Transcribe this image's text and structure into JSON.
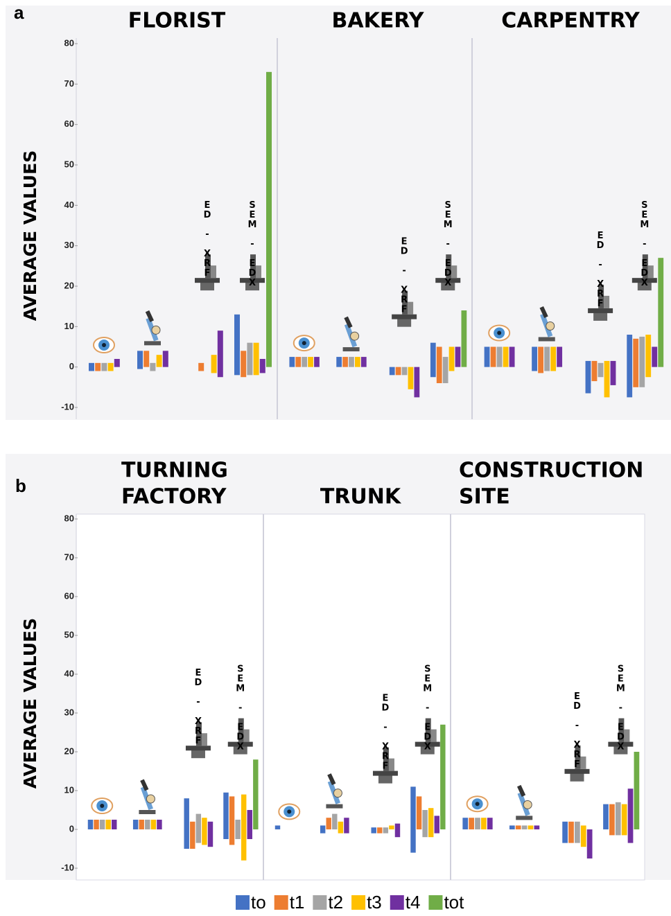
{
  "series": [
    {
      "name": "to",
      "color": "#4472c4"
    },
    {
      "name": "t1",
      "color": "#ed7d31"
    },
    {
      "name": "t2",
      "color": "#a5a5a5"
    },
    {
      "name": "t3",
      "color": "#ffc000"
    },
    {
      "name": "t4",
      "color": "#7030a0"
    },
    {
      "name": "tot",
      "color": "#70ad47"
    }
  ],
  "chart_data": [
    {
      "type": "bar",
      "panel": "a",
      "ylabel": "AVERAGE VALUES",
      "ylim": [
        -10,
        80
      ],
      "yticks": [
        -10,
        0,
        10,
        20,
        30,
        40,
        50,
        60,
        70,
        80
      ],
      "groups": [
        {
          "title": [
            "FLORIST"
          ],
          "methods": [
            {
              "label": null,
              "bars": [
                [
                  -1,
                  1
                ],
                [
                  -1,
                  1
                ],
                [
                  -1,
                  1
                ],
                [
                  -1,
                  1
                ],
                [
                  0,
                  2
                ],
                null
              ]
            },
            {
              "label": null,
              "bars": [
                [
                  -0.5,
                  4
                ],
                [
                  0,
                  4
                ],
                [
                  -1,
                  1
                ],
                [
                  0,
                  3
                ],
                [
                  0,
                  4
                ],
                null
              ]
            },
            {
              "label": "ED - XRF",
              "bars": [
                null,
                [
                  -1,
                  1
                ],
                null,
                [
                  -1.5,
                  3
                ],
                [
                  -2.5,
                  9
                ],
                null
              ]
            },
            {
              "label": "SEM - EDX",
              "bars": [
                [
                  -2,
                  13
                ],
                [
                  -2.5,
                  4
                ],
                [
                  -2,
                  6
                ],
                [
                  -2,
                  6
                ],
                [
                  -1.5,
                  2
                ],
                [
                  0,
                  73
                ]
              ]
            }
          ]
        },
        {
          "title": [
            "BAKERY"
          ],
          "methods": [
            {
              "label": null,
              "bars": [
                [
                  0,
                  2.5
                ],
                [
                  0,
                  2.5
                ],
                [
                  0,
                  2.5
                ],
                [
                  0,
                  2.5
                ],
                [
                  0,
                  2.5
                ],
                null
              ]
            },
            {
              "label": null,
              "bars": [
                [
                  0,
                  2.5
                ],
                [
                  0,
                  2.5
                ],
                [
                  0,
                  2.5
                ],
                [
                  0,
                  2.5
                ],
                [
                  0,
                  2.5
                ],
                null
              ]
            },
            {
              "label": "ED - XRF",
              "bars": [
                [
                  -2,
                  0
                ],
                [
                  -2,
                  0
                ],
                [
                  -2,
                  0
                ],
                [
                  -5.5,
                  0
                ],
                [
                  -7.5,
                  0
                ],
                null
              ]
            },
            {
              "label": "SEM - EDX",
              "bars": [
                [
                  -2.5,
                  6
                ],
                [
                  -4,
                  5
                ],
                [
                  -4,
                  2.5
                ],
                [
                  -1,
                  5
                ],
                [
                  0,
                  5
                ],
                [
                  0,
                  14
                ]
              ]
            }
          ]
        },
        {
          "title": [
            "CARPENTRY"
          ],
          "methods": [
            {
              "label": null,
              "bars": [
                [
                  0,
                  5
                ],
                [
                  0,
                  5
                ],
                [
                  0,
                  5
                ],
                [
                  0,
                  5
                ],
                [
                  0,
                  5
                ],
                null
              ]
            },
            {
              "label": null,
              "bars": [
                [
                  -1,
                  5
                ],
                [
                  -1.5,
                  5
                ],
                [
                  -1,
                  5
                ],
                [
                  -1,
                  5
                ],
                [
                  0,
                  5
                ],
                null
              ]
            },
            {
              "label": "ED - XRF",
              "bars": [
                [
                  -6.5,
                  1.5
                ],
                [
                  -3.5,
                  1.5
                ],
                [
                  -2.5,
                  1
                ],
                [
                  -7.5,
                  1.5
                ],
                [
                  -4.5,
                  1.5
                ],
                null
              ]
            },
            {
              "label": "SEM - EDX",
              "bars": [
                [
                  -7.5,
                  8
                ],
                [
                  -5,
                  7
                ],
                [
                  -5,
                  7.5
                ],
                [
                  -2.5,
                  8
                ],
                [
                  0,
                  5
                ],
                [
                  0,
                  27
                ]
              ]
            }
          ]
        }
      ]
    },
    {
      "type": "bar",
      "panel": "b",
      "ylabel": "AVERAGE VALUES",
      "ylim": [
        -10,
        80
      ],
      "yticks": [
        -10,
        0,
        10,
        20,
        30,
        40,
        50,
        60,
        70,
        80
      ],
      "groups": [
        {
          "title": [
            "TURNING",
            "FACTORY"
          ],
          "methods": [
            {
              "label": null,
              "bars": [
                [
                  0,
                  2.5
                ],
                [
                  0,
                  2.5
                ],
                [
                  0,
                  2.5
                ],
                [
                  0,
                  2.5
                ],
                [
                  0,
                  2.5
                ],
                null
              ]
            },
            {
              "label": null,
              "bars": [
                [
                  0,
                  2.5
                ],
                [
                  0,
                  2.5
                ],
                [
                  0,
                  2.5
                ],
                [
                  0,
                  2.5
                ],
                [
                  0,
                  2.5
                ],
                null
              ]
            },
            {
              "label": "ED - XRF",
              "bars": [
                [
                  -5,
                  8
                ],
                [
                  -5,
                  2
                ],
                [
                  -3.5,
                  4
                ],
                [
                  -4,
                  3
                ],
                [
                  -4.5,
                  2
                ],
                null
              ]
            },
            {
              "label": "SEM - EDX",
              "bars": [
                [
                  -2.5,
                  9.5
                ],
                [
                  -4,
                  8.5
                ],
                [
                  -2.5,
                  2.5
                ],
                [
                  -8,
                  9
                ],
                [
                  -2.5,
                  5
                ],
                [
                  0,
                  18
                ]
              ]
            }
          ]
        },
        {
          "title": [
            "TRUNK"
          ],
          "methods": [
            {
              "label": null,
              "bars": [
                [
                  0,
                  1
                ],
                null,
                null,
                null,
                null,
                null
              ]
            },
            {
              "label": null,
              "bars": [
                [
                  -1,
                  1
                ],
                [
                  0,
                  3
                ],
                [
                  0,
                  4
                ],
                [
                  -1,
                  2
                ],
                [
                  -1,
                  3
                ],
                null
              ]
            },
            {
              "label": "ED - XRF",
              "bars": [
                [
                  -1,
                  0.5
                ],
                [
                  -1,
                  0.5
                ],
                [
                  -1,
                  0.5
                ],
                [
                  0,
                  1
                ],
                [
                  -2,
                  1.5
                ],
                null
              ]
            },
            {
              "label": "SEM - EDX",
              "bars": [
                [
                  -6,
                  11
                ],
                [
                  0,
                  8.5
                ],
                [
                  -2,
                  5
                ],
                [
                  -2,
                  5.5
                ],
                [
                  -1,
                  3.5
                ],
                [
                  0,
                  27
                ]
              ]
            }
          ]
        },
        {
          "title": [
            "CONSTRUCTION",
            "SITE"
          ],
          "methods": [
            {
              "label": null,
              "bars": [
                [
                  0,
                  3
                ],
                [
                  0,
                  3
                ],
                [
                  0,
                  3
                ],
                [
                  0,
                  3
                ],
                [
                  0,
                  3
                ],
                null
              ]
            },
            {
              "label": null,
              "bars": [
                [
                  0,
                  1
                ],
                [
                  0,
                  1
                ],
                [
                  0,
                  1
                ],
                [
                  0,
                  1
                ],
                [
                  0,
                  1
                ],
                null
              ]
            },
            {
              "label": "ED - XRF",
              "bars": [
                [
                  -3.5,
                  2
                ],
                [
                  -3.5,
                  2
                ],
                [
                  -3.5,
                  2
                ],
                [
                  -4.5,
                  1
                ],
                [
                  -7.5,
                  0
                ],
                null
              ]
            },
            {
              "label": "SEM - EDX",
              "bars": [
                [
                  0,
                  6.5
                ],
                [
                  -1.5,
                  6.5
                ],
                [
                  -1.5,
                  7
                ],
                [
                  -1.5,
                  6.5
                ],
                [
                  -3.5,
                  10.5
                ],
                [
                  0,
                  20
                ]
              ]
            }
          ]
        }
      ]
    }
  ]
}
